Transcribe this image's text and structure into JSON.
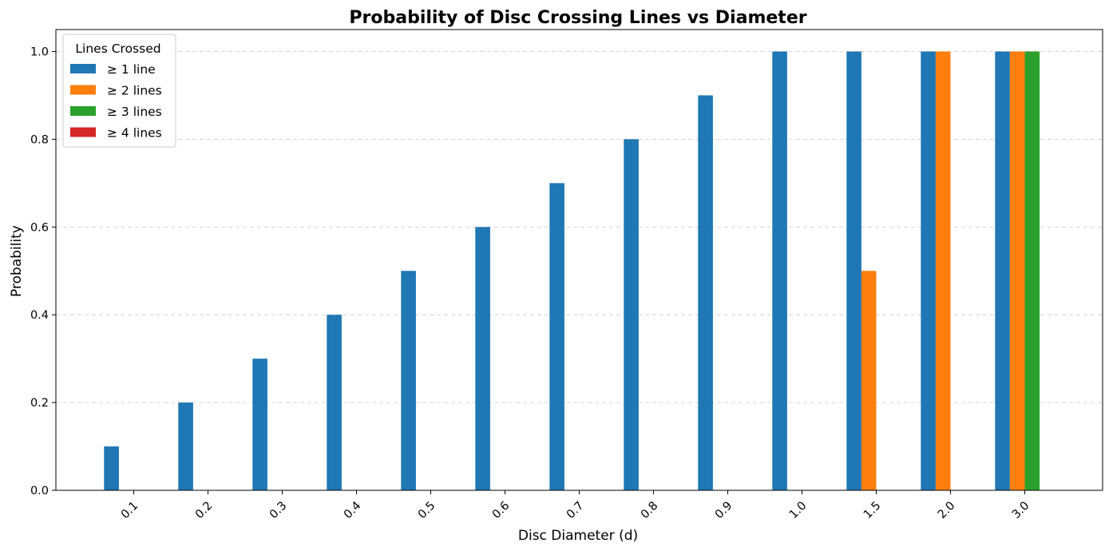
{
  "chart_data": {
    "type": "bar",
    "title": "Probability of Disc Crossing Lines vs Diameter",
    "xlabel": "Disc Diameter (d)",
    "ylabel": "Probability",
    "categories": [
      "0.1",
      "0.2",
      "0.3",
      "0.4",
      "0.5",
      "0.6",
      "0.7",
      "0.8",
      "0.9",
      "1.0",
      "1.5",
      "2.0",
      "3.0"
    ],
    "ylim": [
      0,
      1.05
    ],
    "yticks": [
      "0.0",
      "0.2",
      "0.4",
      "0.6",
      "0.8",
      "1.0"
    ],
    "grid": "y-dashed",
    "legend": {
      "title": "Lines Crossed",
      "placement": "top-left"
    },
    "series": [
      {
        "name": "≥ 1 line",
        "color": "#1f77b4",
        "values": [
          0.1,
          0.2,
          0.3,
          0.4,
          0.5,
          0.6,
          0.7,
          0.8,
          0.9,
          1.0,
          1.0,
          1.0,
          1.0
        ]
      },
      {
        "name": "≥ 2 lines",
        "color": "#ff7f0e",
        "values": [
          0,
          0,
          0,
          0,
          0,
          0,
          0,
          0,
          0,
          0,
          0.5,
          1.0,
          1.0
        ]
      },
      {
        "name": "≥ 3 lines",
        "color": "#2ca02c",
        "values": [
          0,
          0,
          0,
          0,
          0,
          0,
          0,
          0,
          0,
          0,
          0,
          0,
          1.0
        ]
      },
      {
        "name": "≥ 4 lines",
        "color": "#d62728",
        "values": [
          0,
          0,
          0,
          0,
          0,
          0,
          0,
          0,
          0,
          0,
          0,
          0,
          0
        ]
      }
    ]
  }
}
